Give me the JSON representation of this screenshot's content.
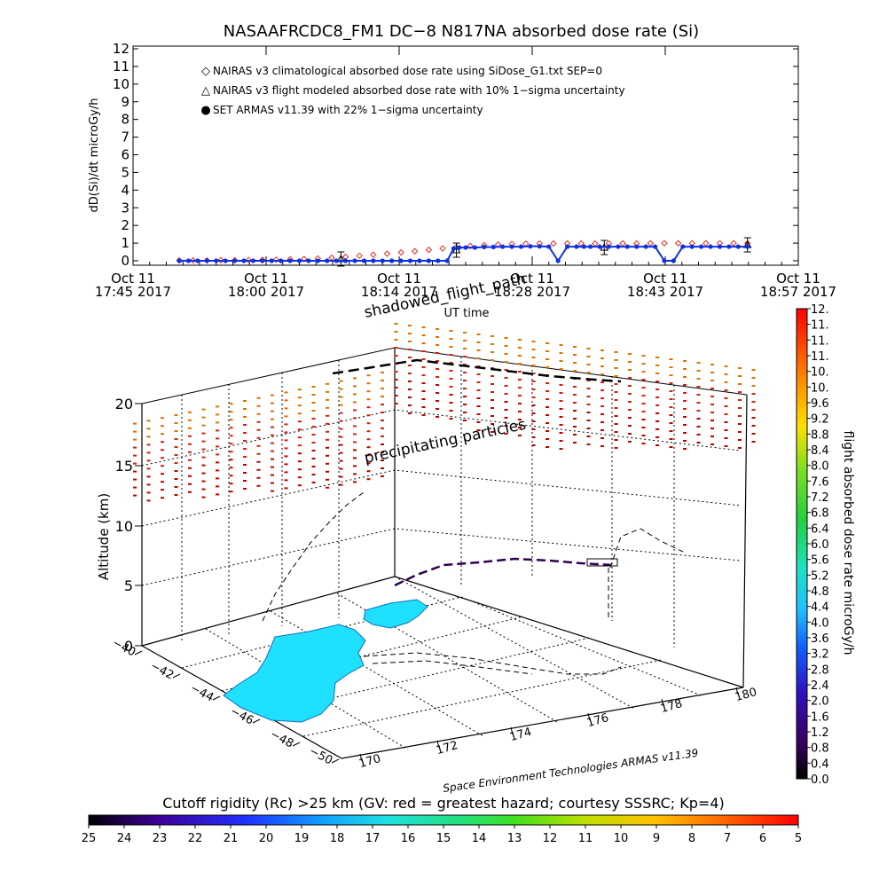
{
  "page": {
    "title": "NASAAFRCDC8_FM1 DC−8     N817NA absorbed dose rate (Si)"
  },
  "chart_data": [
    {
      "type": "scatter",
      "ylabel": "dD(Si)/dt microGy/h",
      "xlabel": "UT time",
      "ylim": [
        0,
        12
      ],
      "y_ticks": [
        "0",
        "1",
        "2",
        "3",
        "4",
        "5",
        "6",
        "7",
        "8",
        "9",
        "10",
        "11",
        "12"
      ],
      "x_range_minutes": [
        0,
        72
      ],
      "x_ticks": [
        {
          "minute": 0,
          "line1": "Oct 11",
          "line2": "17:45 2017"
        },
        {
          "minute": 14.4,
          "line1": "Oct 11",
          "line2": "18:00 2017"
        },
        {
          "minute": 28.8,
          "line1": "Oct 11",
          "line2": "18:14 2017"
        },
        {
          "minute": 43.2,
          "line1": "Oct 11",
          "line2": "18:28 2017"
        },
        {
          "minute": 57.6,
          "line1": "Oct 11",
          "line2": "18:43 2017"
        },
        {
          "minute": 72,
          "line1": "Oct 11",
          "line2": "18:57 2017"
        }
      ],
      "legend": [
        {
          "symbol": "◇",
          "color": "#e03020",
          "text": "NAIRAS v3 climatological absorbed dose rate using SiDose_G1.txt SEP=0"
        },
        {
          "symbol": "△",
          "color": "#000000",
          "text": "NAIRAS v3 flight modeled absorbed dose rate with 10% 1−sigma uncertainty"
        },
        {
          "symbol": "●",
          "color": "#1030e0",
          "text": "SET ARMAS v11.39 with 22% 1−sigma uncertainty"
        }
      ],
      "series": [
        {
          "name": "NAIRAS v3 climatological absorbed dose rate using SiDose_G1.txt SEP=0",
          "color": "#e03020",
          "marker": "diamond",
          "x": [
            5,
            6.5,
            8,
            9.5,
            11,
            12.5,
            14,
            15.5,
            17,
            18.5,
            20,
            21.5,
            23,
            24.5,
            26,
            27.5,
            29,
            30.5,
            32,
            33.5,
            35,
            36.5,
            38,
            39.5,
            41,
            42.5,
            44,
            45.5,
            47,
            48.5,
            50,
            51.5,
            53,
            54.5,
            56,
            57.5,
            59,
            60.5,
            62,
            63.5,
            65,
            66.5
          ],
          "y": [
            0.02,
            0.02,
            0.02,
            0.03,
            0.03,
            0.04,
            0.05,
            0.06,
            0.08,
            0.1,
            0.13,
            0.17,
            0.22,
            0.28,
            0.34,
            0.4,
            0.47,
            0.54,
            0.62,
            0.7,
            0.78,
            0.84,
            0.88,
            0.92,
            0.95,
            0.97,
            0.98,
            0.98,
            0.98,
            0.98,
            0.98,
            0.98,
            0.98,
            0.98,
            0.99,
            0.99,
            0.99,
            0.99,
            0.99,
            0.99,
            0.99,
            0.99
          ]
        },
        {
          "name": "NAIRAS v3 flight modeled absorbed dose rate with 10% 1−sigma uncertainty",
          "color": "#000000",
          "marker": "triangle",
          "x": [
            22.5,
            35,
            51,
            66.5
          ],
          "y": [
            0.1,
            0.6,
            0.75,
            0.9
          ]
        },
        {
          "name": "SET ARMAS v11.39 with 22% 1−sigma uncertainty",
          "color": "#1030e0",
          "marker": "circle",
          "x": [
            5,
            6,
            7,
            8,
            9,
            10,
            11,
            12,
            13,
            14,
            15,
            16,
            17,
            18,
            19,
            20,
            21,
            22,
            23,
            24,
            25,
            26,
            27,
            28,
            29,
            30,
            31,
            32,
            33,
            34,
            34.7,
            35.3,
            36,
            37,
            38,
            39,
            40,
            41,
            42,
            43,
            44,
            45,
            46,
            47,
            48,
            48.8,
            49.5,
            50.5,
            51.5,
            52.5,
            53.5,
            54.5,
            55.5,
            56.5,
            57.5,
            58.5,
            59.5,
            60.5,
            61.5,
            62.5,
            63.5,
            64.5,
            65.5,
            66.5
          ],
          "y": [
            0,
            0,
            0,
            0,
            0,
            0,
            0,
            0,
            0,
            0,
            0,
            0,
            0,
            0,
            0,
            0,
            0,
            0,
            0,
            0,
            0,
            0,
            0,
            0,
            0,
            0,
            0,
            0,
            0,
            0,
            0.7,
            0.75,
            0.75,
            0.75,
            0.78,
            0.78,
            0.8,
            0.8,
            0.8,
            0.82,
            0.82,
            0.8,
            0,
            0.8,
            0.8,
            0.8,
            0.8,
            0.8,
            0.8,
            0.8,
            0.8,
            0.8,
            0.8,
            0.8,
            0,
            0,
            0.8,
            0.8,
            0.8,
            0.8,
            0.8,
            0.8,
            0.8,
            0.8
          ]
        }
      ]
    },
    {
      "type": "scatter",
      "zlabel": "Altitude (km)",
      "z_ticks": [
        "0",
        "5",
        "10",
        "15",
        "20"
      ],
      "lat_ticks": [
        "−40",
        "−42",
        "−44",
        "−46",
        "−48",
        "−50"
      ],
      "lon_ticks": [
        "170",
        "172",
        "174",
        "176",
        "178",
        "180"
      ],
      "annotations": [
        "shadowed_flight_path",
        "precipitating particles"
      ],
      "credit": "Space Environment Technologies ARMAS v11.39",
      "colorbar": {
        "label": "flight absorbed dose rate microGy/h",
        "ticks": [
          "0.0",
          "0.4",
          "0.8",
          "1.2",
          "1.6",
          "2.0",
          "2.4",
          "2.8",
          "3.2",
          "3.6",
          "4.0",
          "4.4",
          "4.8",
          "5.2",
          "5.6",
          "6.0",
          "6.4",
          "6.8",
          "7.2",
          "7.6",
          "8.0",
          "8.4",
          "8.8",
          "9.2",
          "9.6",
          "10.",
          "10.",
          "11.",
          "11.",
          "11.",
          "12."
        ]
      }
    },
    {
      "type": "heatmap",
      "title": "Cutoff rigidity (Rc) >25 km (GV: red = greatest hazard; courtesy SSSRC; Kp=4)",
      "ticks": [
        "25",
        "24",
        "23",
        "22",
        "21",
        "20",
        "19",
        "18",
        "17",
        "16",
        "15",
        "14",
        "13",
        "12",
        "11",
        "10",
        "9",
        "8",
        "7",
        "6",
        "5"
      ]
    }
  ]
}
